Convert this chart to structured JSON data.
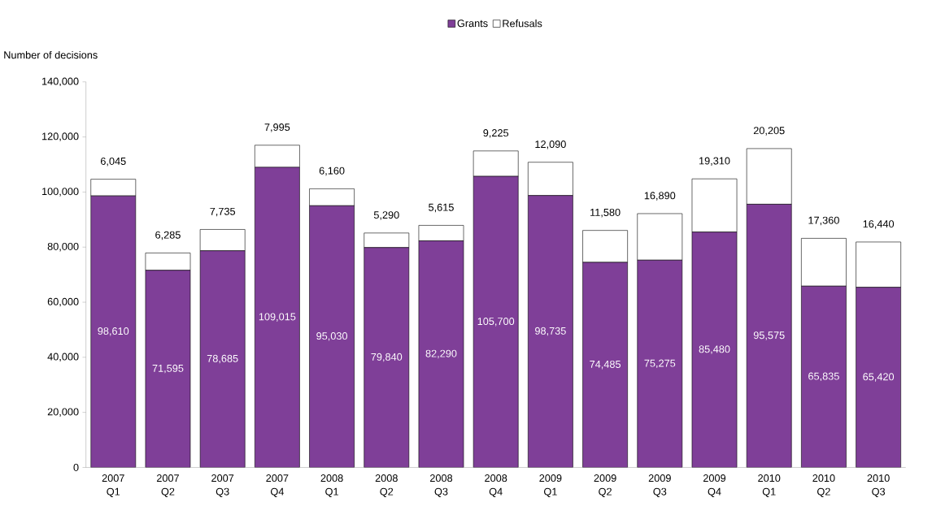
{
  "chart_data": {
    "type": "bar",
    "stacked": true,
    "ylabel": "Number of decisions",
    "legend": "top",
    "categories": [
      "2007 Q1",
      "2007 Q2",
      "2007 Q3",
      "2007 Q4",
      "2008 Q1",
      "2008 Q2",
      "2008 Q3",
      "2008 Q4",
      "2009 Q1",
      "2009 Q2",
      "2009 Q3",
      "2009 Q4",
      "2010 Q1",
      "2010 Q2",
      "2010 Q3"
    ],
    "series": [
      {
        "name": "Grants",
        "color": "#7f3f98",
        "values": [
          98610,
          71595,
          78685,
          109015,
          95030,
          79840,
          82290,
          105700,
          98735,
          74485,
          75275,
          85480,
          95575,
          65835,
          65420
        ],
        "value_labels": [
          "98,610",
          "71,595",
          "78,685",
          "109,015",
          "95,030",
          "79,840",
          "82,290",
          "105,700",
          "98,735",
          "74,485",
          "75,275",
          "85,480",
          "95,575",
          "65,835",
          "65,420"
        ]
      },
      {
        "name": "Refusals",
        "color": "#ffffff",
        "values": [
          6045,
          6285,
          7735,
          7995,
          6160,
          5290,
          5615,
          9225,
          12090,
          11580,
          16890,
          19310,
          20205,
          17360,
          16440
        ],
        "value_labels": [
          "6,045",
          "6,285",
          "7,735",
          "7,995",
          "6,160",
          "5,290",
          "5,615",
          "9,225",
          "12,090",
          "11,580",
          "16,890",
          "19,310",
          "20,205",
          "17,360",
          "16,440"
        ]
      }
    ],
    "ylim": [
      0,
      140000
    ],
    "yticks": [
      0,
      {
        "value": 20000,
        "label": "20,000"
      },
      {
        "value": 40000,
        "label": "40,000"
      },
      {
        "value": 60000,
        "label": "60,000"
      },
      {
        "value": 80000,
        "label": "80,000"
      },
      {
        "value": 100000,
        "label": "100,000"
      },
      {
        "value": 120000,
        "label": "120,000"
      },
      {
        "value": 140000,
        "label": "140,000"
      }
    ]
  }
}
